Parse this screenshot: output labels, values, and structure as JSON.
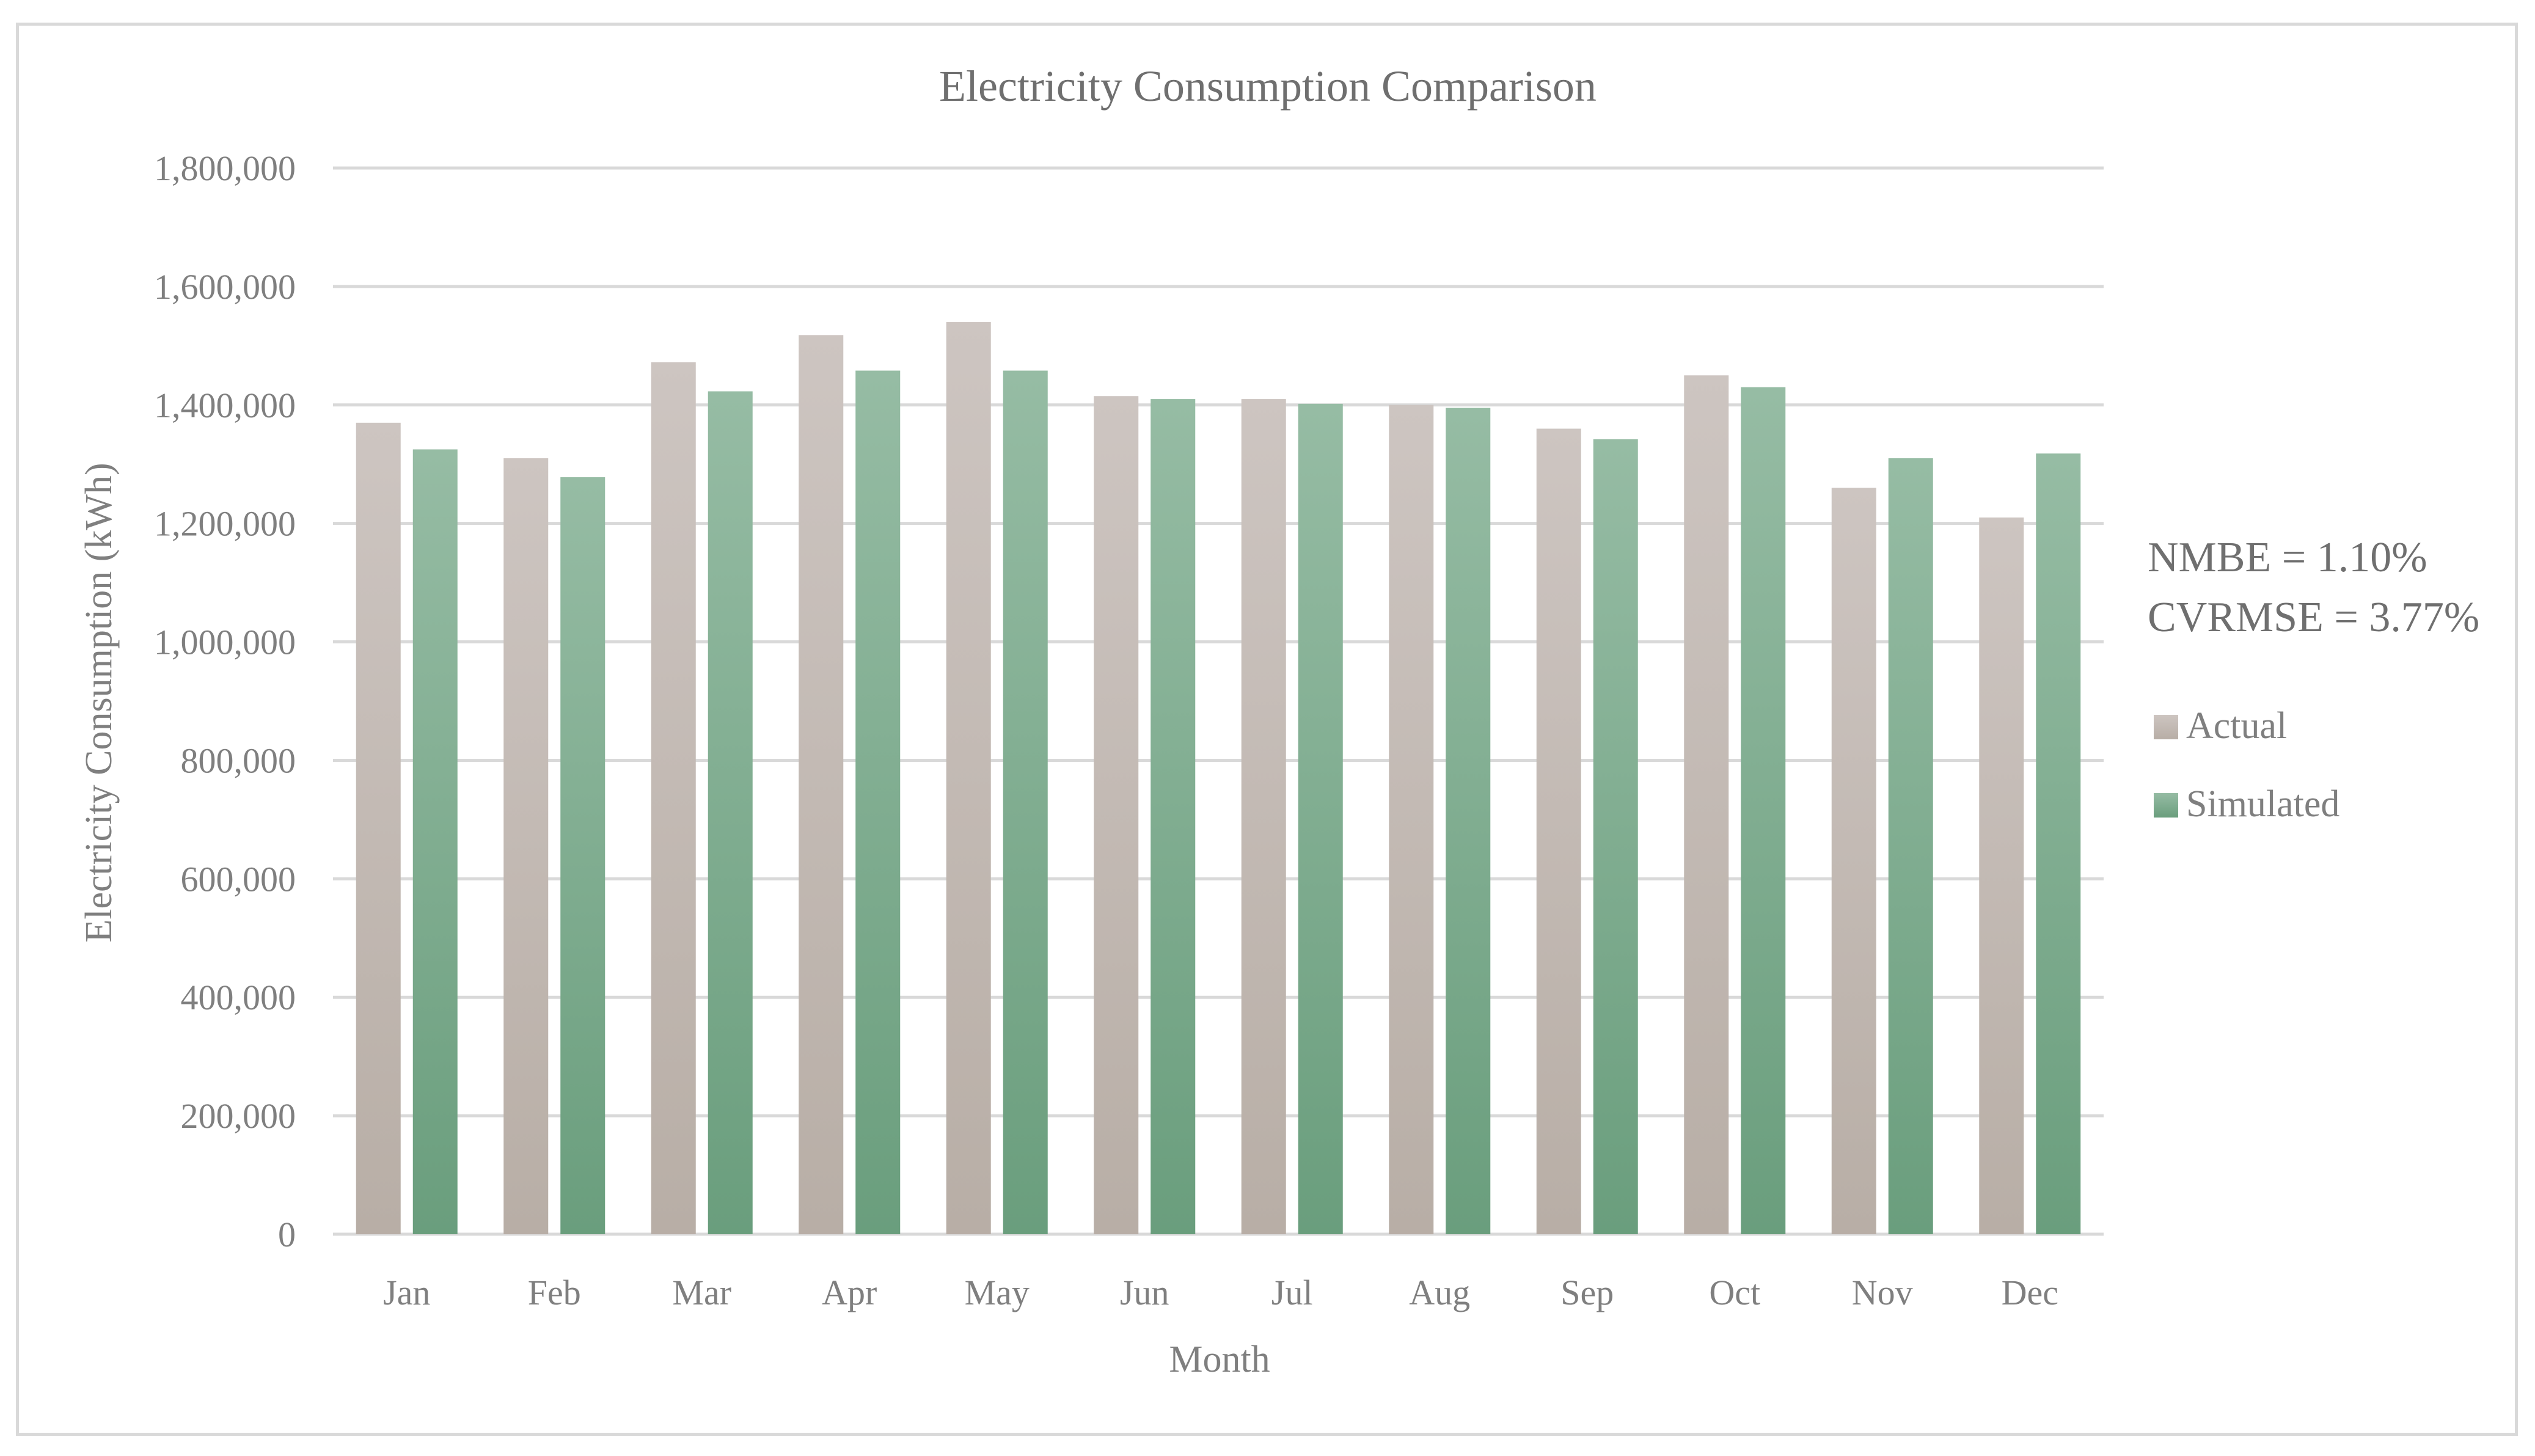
{
  "chart_data": {
    "type": "bar",
    "title": "Electricity Consumption Comparison",
    "xlabel": "Month",
    "ylabel": "Electricity Consumption (kWh)",
    "ylim": [
      0,
      1800000
    ],
    "yticks": [
      "0",
      "200,000",
      "400,000",
      "600,000",
      "800,000",
      "1,000,000",
      "1,200,000",
      "1,400,000",
      "1,600,000",
      "1,800,000"
    ],
    "categories": [
      "Jan",
      "Feb",
      "Mar",
      "Apr",
      "May",
      "Jun",
      "Jul",
      "Aug",
      "Sep",
      "Oct",
      "Nov",
      "Dec"
    ],
    "series": [
      {
        "name": "Actual",
        "color": "#c9c0bb",
        "values": [
          1370000,
          1310000,
          1472000,
          1518000,
          1540000,
          1415000,
          1410000,
          1400000,
          1360000,
          1450000,
          1260000,
          1210000
        ]
      },
      {
        "name": "Simulated",
        "color": "#86b398",
        "values": [
          1325000,
          1278000,
          1423000,
          1458000,
          1458000,
          1410000,
          1402000,
          1395000,
          1342000,
          1430000,
          1310000,
          1318000
        ]
      }
    ],
    "grid": true,
    "legend_position": "right",
    "annotations": [
      "NMBE = 1.10%",
      "CVRMSE = 3.77%"
    ]
  }
}
